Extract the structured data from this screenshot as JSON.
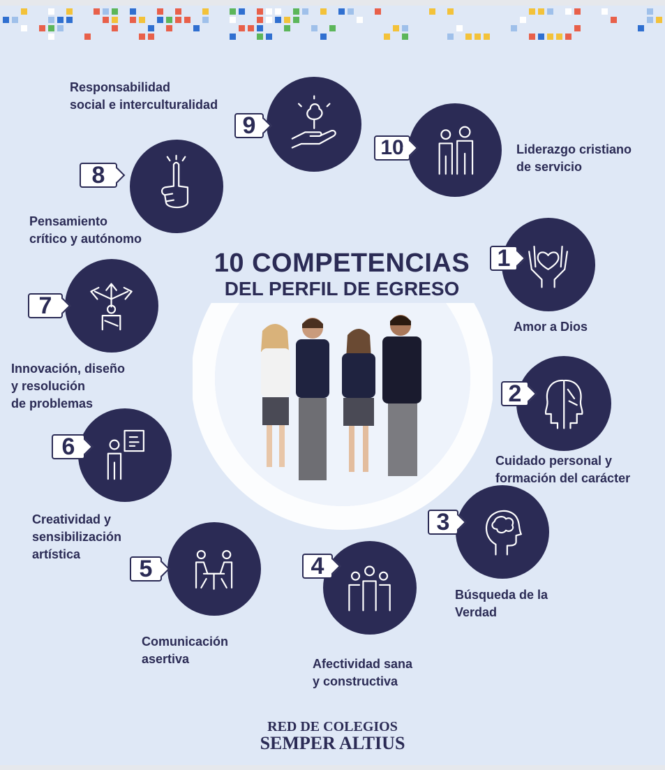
{
  "title": {
    "line1": "10 COMPETENCIAS",
    "line2": "DEL PERFIL DE EGRESO"
  },
  "brand": {
    "line1": "RED DE COLEGIOS",
    "line2": "SEMPER ALTIUS"
  },
  "colors": {
    "navy": "#2b2b55",
    "background": "#dfe8f6",
    "pixel_blue": "#2f6fd0",
    "pixel_yellow": "#f3c23a",
    "pixel_red": "#e8604a",
    "pixel_green": "#5cb65a"
  },
  "competencias": [
    {
      "number": "1",
      "label": "Amor a Dios",
      "icon": "hands-heart-icon"
    },
    {
      "number": "2",
      "label": "Cuidado personal y\nformación del carácter",
      "icon": "two-faces-icon"
    },
    {
      "number": "3",
      "label": "Búsqueda de la\nVerdad",
      "icon": "head-brain-icon"
    },
    {
      "number": "4",
      "label": "Afectividad sana\ny constructiva",
      "icon": "group-people-icon"
    },
    {
      "number": "5",
      "label": "Comunicación\nasertiva",
      "icon": "conversation-table-icon"
    },
    {
      "number": "6",
      "label": "Creatividad y\nsensibilización\nartística",
      "icon": "person-easel-icon"
    },
    {
      "number": "7",
      "label": "Innovación, diseño\ny resolución\nde problemas",
      "icon": "person-arrows-icon"
    },
    {
      "number": "8",
      "label": "Pensamiento\ncrítico y autónomo",
      "icon": "raised-finger-icon"
    },
    {
      "number": "9",
      "label": "Responsabilidad\nsocial e interculturalidad",
      "icon": "hand-tree-icon"
    },
    {
      "number": "10",
      "label": "Liderazgo cristiano\nde servicio",
      "icon": "two-people-icon"
    }
  ]
}
